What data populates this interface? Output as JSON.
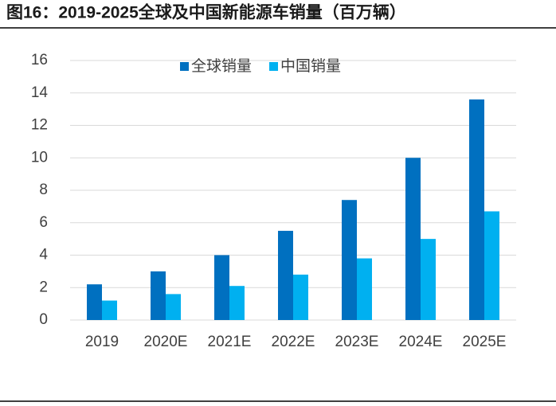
{
  "chart_data": {
    "type": "bar",
    "title": "图16：2019-2025全球及中国新能源车销量（百万辆）",
    "categories": [
      "2019",
      "2020E",
      "2021E",
      "2022E",
      "2023E",
      "2024E",
      "2025E"
    ],
    "series": [
      {
        "name": "全球销量",
        "color": "#0070c0",
        "values": [
          2.2,
          3.0,
          4.0,
          5.5,
          7.4,
          10.0,
          13.6
        ]
      },
      {
        "name": "中国销量",
        "color": "#00b0f0",
        "values": [
          1.2,
          1.6,
          2.1,
          2.8,
          3.8,
          5.0,
          6.7
        ]
      }
    ],
    "ylim": [
      0,
      16
    ],
    "yticks": [
      0,
      2,
      4,
      6,
      8,
      10,
      12,
      14,
      16
    ],
    "grid": true,
    "legend": "top"
  }
}
